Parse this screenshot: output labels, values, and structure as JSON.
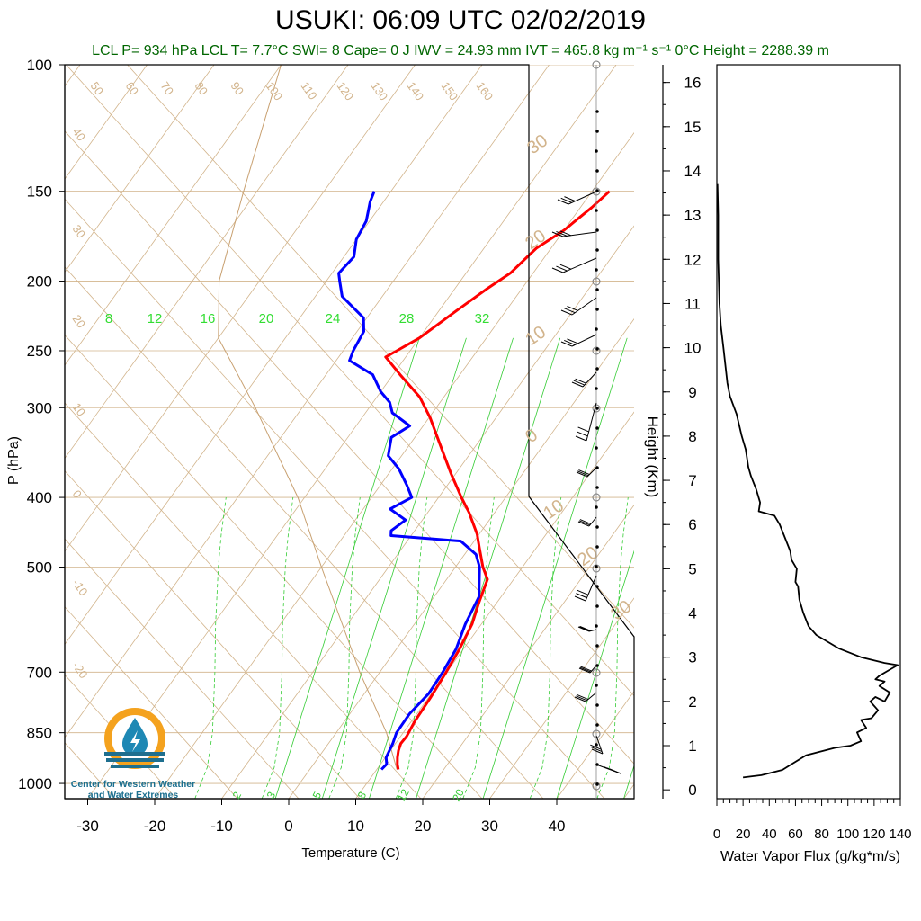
{
  "title": "USUKI: 06:09 UTC 02/02/2019",
  "subtitle": "LCL P= 934 hPa  LCL T= 7.7°C  SWI= 8  Cape= 0 J  IWV = 24.93 mm  IVT = 465.8 kg m⁻¹ s⁻¹  0°C Height = 2288.39 m",
  "logo": {
    "line1": "Center for Western Weather",
    "line2": "and Water Extremes"
  },
  "colors": {
    "temperature": "#ff0000",
    "dewpoint": "#0000ff",
    "isotherm": "#d2b48c",
    "mixing_ratio": "#33cc33",
    "subtitle": "#006600"
  },
  "chart_data": [
    {
      "type": "line",
      "chart": "skew-t",
      "xlabel": "Temperature (C)",
      "ylabel": "P (hPa)",
      "pressure_ticks": [
        100,
        150,
        200,
        250,
        300,
        400,
        500,
        700,
        850,
        1000
      ],
      "temperature_ticks": [
        -30,
        -20,
        -10,
        0,
        10,
        20,
        30,
        40
      ],
      "xlim": [
        -33,
        50
      ],
      "ylim": [
        1050,
        100
      ],
      "y_scale": "log",
      "isotherm_labels": [
        50,
        60,
        70,
        80,
        90,
        100,
        110,
        120,
        130,
        140,
        150,
        160
      ],
      "left_isotherm_labels": [
        40,
        30,
        20,
        10,
        0,
        -10,
        -20
      ],
      "right_isotherm_labels": [
        30,
        20,
        10,
        0,
        -10,
        -20,
        -30
      ],
      "mixing_ratio_upper_labels": [
        8,
        12,
        16,
        20,
        24,
        28,
        32
      ],
      "mixing_ratio_lower_labels": [
        2,
        3,
        5,
        8,
        12,
        20
      ],
      "series": [
        {
          "name": "temperature",
          "points": [
            [
              956,
              13.2
            ],
            [
              940,
              12.5
            ],
            [
              920,
              11.8
            ],
            [
              900,
              11.2
            ],
            [
              880,
              10.8
            ],
            [
              860,
              10.9
            ],
            [
              820,
              10.5
            ],
            [
              760,
              10.3
            ],
            [
              700,
              9.9
            ],
            [
              650,
              9.4
            ],
            [
              600,
              8.6
            ],
            [
              560,
              7.3
            ],
            [
              520,
              6.1
            ],
            [
              500,
              4.1
            ],
            [
              470,
              1.5
            ],
            [
              450,
              -0.3
            ],
            [
              420,
              -3.8
            ],
            [
              400,
              -6.6
            ],
            [
              370,
              -10.8
            ],
            [
              340,
              -15.1
            ],
            [
              310,
              -19.8
            ],
            [
              290,
              -23.6
            ],
            [
              270,
              -28.9
            ],
            [
              255,
              -33.0
            ],
            [
              250,
              -32.0
            ],
            [
              240,
              -30.0
            ],
            [
              220,
              -27.4
            ],
            [
              205,
              -25.2
            ],
            [
              195,
              -23.4
            ],
            [
              180,
              -22.2
            ],
            [
              170,
              -20.0
            ],
            [
              158,
              -18.3
            ],
            [
              150,
              -17.4
            ]
          ]
        },
        {
          "name": "dewpoint",
          "points": [
            [
              956,
              10.7
            ],
            [
              940,
              10.9
            ],
            [
              920,
              10.1
            ],
            [
              880,
              9.6
            ],
            [
              850,
              9.0
            ],
            [
              800,
              8.9
            ],
            [
              750,
              9.6
            ],
            [
              700,
              9.4
            ],
            [
              650,
              8.9
            ],
            [
              600,
              7.6
            ],
            [
              550,
              6.7
            ],
            [
              500,
              3.6
            ],
            [
              480,
              1.7
            ],
            [
              460,
              -2.0
            ],
            [
              452,
              -13.0
            ],
            [
              445,
              -13.5
            ],
            [
              430,
              -12.5
            ],
            [
              415,
              -16.0
            ],
            [
              400,
              -14.0
            ],
            [
              385,
              -16.0
            ],
            [
              365,
              -19.0
            ],
            [
              350,
              -22.0
            ],
            [
              330,
              -23.5
            ],
            [
              318,
              -22.0
            ],
            [
              305,
              -26.0
            ],
            [
              295,
              -27.5
            ],
            [
              285,
              -30.0
            ],
            [
              270,
              -33.0
            ],
            [
              258,
              -38.0
            ],
            [
              250,
              -38.5
            ],
            [
              235,
              -39.0
            ],
            [
              225,
              -40.5
            ],
            [
              210,
              -46.0
            ],
            [
              200,
              -48.0
            ],
            [
              195,
              -49.0
            ],
            [
              185,
              -48.5
            ],
            [
              175,
              -50.0
            ],
            [
              165,
              -50.5
            ],
            [
              155,
              -52.0
            ],
            [
              150,
              -52.5
            ]
          ]
        }
      ]
    },
    {
      "type": "line",
      "chart": "water-vapor-flux-profile",
      "xlabel": "Water Vapor Flux (g/kg*m/s)",
      "ylabel": "Height (Km)",
      "x_ticks": [
        0,
        20,
        40,
        60,
        80,
        100,
        120,
        140
      ],
      "y_ticks": [
        0,
        1,
        2,
        3,
        4,
        5,
        6,
        7,
        8,
        9,
        10,
        11,
        12,
        13,
        14,
        15,
        16
      ],
      "xlim": [
        0,
        140
      ],
      "ylim": [
        -0.2,
        16.4
      ],
      "points": [
        [
          20,
          0.28
        ],
        [
          34,
          0.33
        ],
        [
          50,
          0.45
        ],
        [
          58,
          0.6
        ],
        [
          68,
          0.78
        ],
        [
          90,
          0.95
        ],
        [
          102,
          1.0
        ],
        [
          110,
          1.1
        ],
        [
          107,
          1.3
        ],
        [
          114,
          1.4
        ],
        [
          110,
          1.58
        ],
        [
          118,
          1.62
        ],
        [
          123,
          1.8
        ],
        [
          117,
          2.0
        ],
        [
          121,
          2.1
        ],
        [
          128,
          2.0
        ],
        [
          132,
          2.2
        ],
        [
          124,
          2.35
        ],
        [
          128,
          2.45
        ],
        [
          121,
          2.5
        ],
        [
          124,
          2.58
        ],
        [
          131,
          2.7
        ],
        [
          138,
          2.82
        ],
        [
          128,
          2.87
        ],
        [
          110,
          3.0
        ],
        [
          93,
          3.2
        ],
        [
          76,
          3.5
        ],
        [
          70,
          3.7
        ],
        [
          66,
          4.0
        ],
        [
          63,
          4.3
        ],
        [
          62,
          4.6
        ],
        [
          60,
          4.7
        ],
        [
          61,
          5.0
        ],
        [
          57,
          5.2
        ],
        [
          56,
          5.4
        ],
        [
          52,
          5.7
        ],
        [
          48,
          6.0
        ],
        [
          44,
          6.2
        ],
        [
          32,
          6.3
        ],
        [
          33,
          6.5
        ],
        [
          30,
          6.8
        ],
        [
          26,
          7.1
        ],
        [
          24,
          7.3
        ],
        [
          22,
          7.7
        ],
        [
          19,
          8.0
        ],
        [
          15,
          8.5
        ],
        [
          10,
          8.9
        ],
        [
          8,
          9.2
        ],
        [
          5,
          10.0
        ],
        [
          3,
          10.5
        ],
        [
          2,
          11.0
        ],
        [
          1,
          12.0
        ],
        [
          1,
          13.0
        ],
        [
          0.5,
          13.7
        ]
      ]
    }
  ]
}
